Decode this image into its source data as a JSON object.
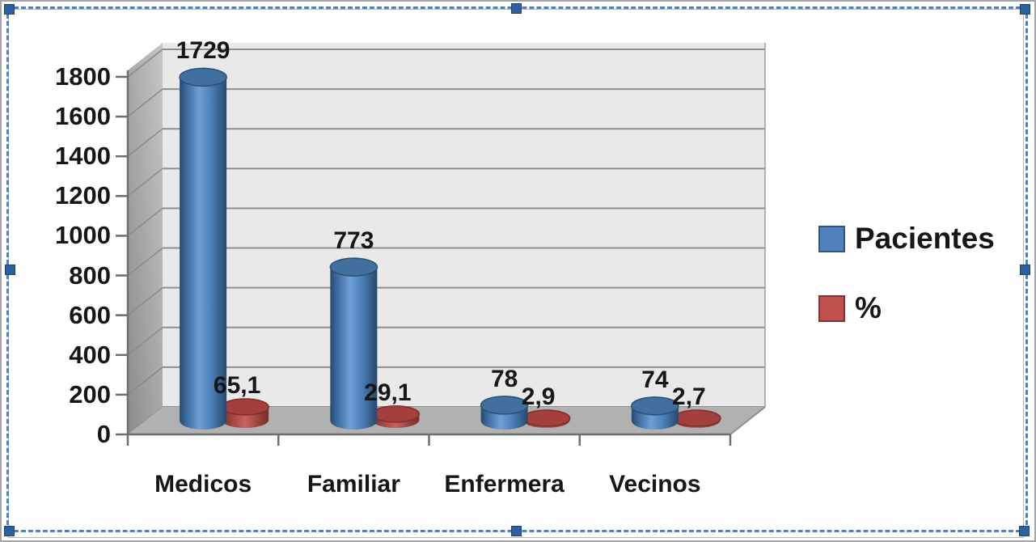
{
  "window": {
    "background": "#ffffff"
  },
  "selection": {
    "border_color": "#4e81bd",
    "handle_color": "#2e5f9f",
    "handle_count": 8
  },
  "chart_data": {
    "type": "bar",
    "subtype": "3d-cylinder",
    "title": "",
    "categories": [
      "Medicos",
      "Familiar",
      "Enfermera",
      "Vecinos"
    ],
    "series": [
      {
        "name": "Pacientes",
        "color": "#4F81BD",
        "values": [
          1729,
          773,
          78,
          74
        ],
        "data_labels": [
          "1729",
          "773",
          "78",
          "74"
        ]
      },
      {
        "name": "%",
        "color": "#C0504D",
        "values": [
          65.1,
          29.1,
          2.9,
          2.7
        ],
        "data_labels": [
          "65,1",
          "29,1",
          "2,9",
          "2,7"
        ]
      }
    ],
    "ylim": [
      0,
      1800
    ],
    "ytick_step": 200,
    "ytick_labels": [
      "0",
      "200",
      "400",
      "600",
      "800",
      "1000",
      "1200",
      "1400",
      "1600",
      "1800"
    ],
    "grid": true,
    "legend_position": "right",
    "decimal_separator": ",",
    "wall_color": "#e9e9e9",
    "floor_color": "#b1b1b1",
    "gridline_color": "#8f8f8f"
  }
}
